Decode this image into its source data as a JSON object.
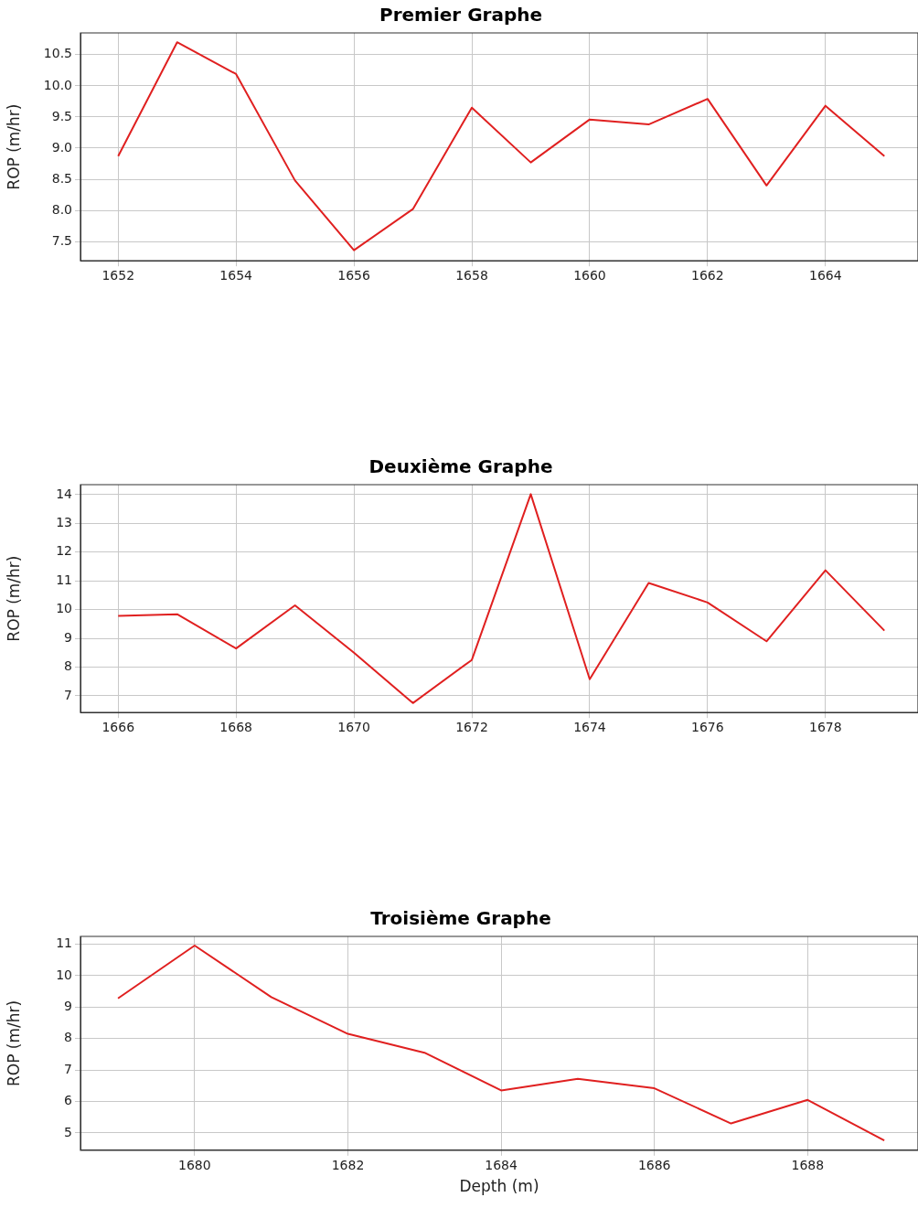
{
  "chart_data": [
    {
      "type": "line",
      "title": "Premier Graphe",
      "ylabel": "ROP (m/hr)",
      "x": [
        1652,
        1653,
        1654,
        1655,
        1656,
        1657,
        1658,
        1659,
        1660,
        1661,
        1662,
        1663,
        1664,
        1665
      ],
      "series": [
        {
          "color": "#e02020",
          "values": [
            8.87,
            10.7,
            10.19,
            8.48,
            7.36,
            8.02,
            9.65,
            8.77,
            9.46,
            9.38,
            9.79,
            8.4,
            9.68,
            8.87
          ]
        }
      ],
      "xlim": [
        1651.36,
        1665.57
      ],
      "xticks": [
        1652,
        1654,
        1656,
        1658,
        1660,
        1662,
        1664
      ],
      "ylim": [
        7.19,
        10.85
      ],
      "yticks": [
        7.5,
        {
          "value": 8,
          "label": "8.0"
        },
        8.5,
        {
          "value": 9,
          "label": "9.0"
        },
        9.5,
        {
          "value": 10,
          "label": "10.0"
        },
        10.5
      ],
      "grid": true,
      "legend": false,
      "marker": "none",
      "line_style": "solid"
    },
    {
      "type": "line",
      "title": "Deuxième Graphe",
      "ylabel": "ROP (m/hr)",
      "x": [
        1666,
        1667,
        1668,
        1669,
        1670,
        1671,
        1672,
        1673,
        1674,
        1675,
        1676,
        1677,
        1678,
        1679
      ],
      "series": [
        {
          "color": "#e02020",
          "values": [
            9.78,
            9.84,
            8.65,
            10.15,
            8.5,
            6.75,
            8.25,
            14.02,
            7.58,
            10.93,
            10.25,
            8.9,
            11.37,
            9.27
          ]
        }
      ],
      "xlim": [
        1665.36,
        1679.57
      ],
      "xticks": [
        1666,
        1668,
        1670,
        1672,
        1674,
        1676,
        1678
      ],
      "ylim": [
        6.42,
        14.35
      ],
      "yticks": [
        7,
        8,
        9,
        10,
        11,
        12,
        13,
        14
      ],
      "grid": true,
      "legend": false,
      "marker": "none",
      "line_style": "solid"
    },
    {
      "type": "line",
      "title": "Troisième Graphe",
      "xlabel": "Depth (m)",
      "ylabel": "ROP (m/hr)",
      "x": [
        1679,
        1680,
        1681,
        1682,
        1683,
        1684,
        1685,
        1686,
        1687,
        1688,
        1689
      ],
      "series": [
        {
          "color": "#e02020",
          "values": [
            9.28,
            10.96,
            9.32,
            8.15,
            7.55,
            6.35,
            6.72,
            6.42,
            5.3,
            6.05,
            4.76
          ]
        }
      ],
      "xlim": [
        1678.51,
        1689.44
      ],
      "xticks": [
        1680,
        1682,
        1684,
        1686,
        1688
      ],
      "ylim": [
        4.45,
        11.25
      ],
      "yticks": [
        5,
        6,
        7,
        8,
        9,
        10,
        11
      ],
      "grid": true,
      "legend": false,
      "marker": "none",
      "line_style": "solid"
    }
  ]
}
